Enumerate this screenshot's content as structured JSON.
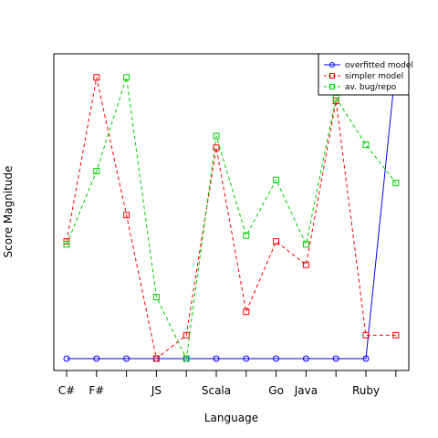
{
  "chart_data": {
    "type": "line",
    "title": "",
    "xlabel": "Language",
    "ylabel": "Score Magnitude",
    "categories": [
      "C#",
      "F#",
      "",
      "JS",
      "",
      "Scala",
      "",
      "Go",
      "Java",
      "",
      "Ruby",
      ""
    ],
    "ylim": [
      0,
      1
    ],
    "legend_position": "top-right",
    "series": [
      {
        "name": "overfitted model",
        "color": "#0000ff",
        "dash": "solid",
        "marker": "circle",
        "values": [
          0,
          0,
          0,
          0,
          0,
          0,
          0,
          0,
          0,
          0,
          0,
          1.0
        ]
      },
      {
        "name": "simpler model",
        "color": "#ff0000",
        "dash": "dashed",
        "marker": "square",
        "values": [
          0.4,
          0.96,
          0.49,
          0.0,
          0.08,
          0.72,
          0.16,
          0.4,
          0.32,
          0.88,
          0.08,
          0.08
        ]
      },
      {
        "name": "av. bug/repo",
        "color": "#00cc00",
        "dash": "dashed",
        "marker": "square",
        "values": [
          0.39,
          0.64,
          0.96,
          0.21,
          0.0,
          0.76,
          0.42,
          0.61,
          0.39,
          0.89,
          0.73,
          0.6
        ]
      }
    ]
  }
}
